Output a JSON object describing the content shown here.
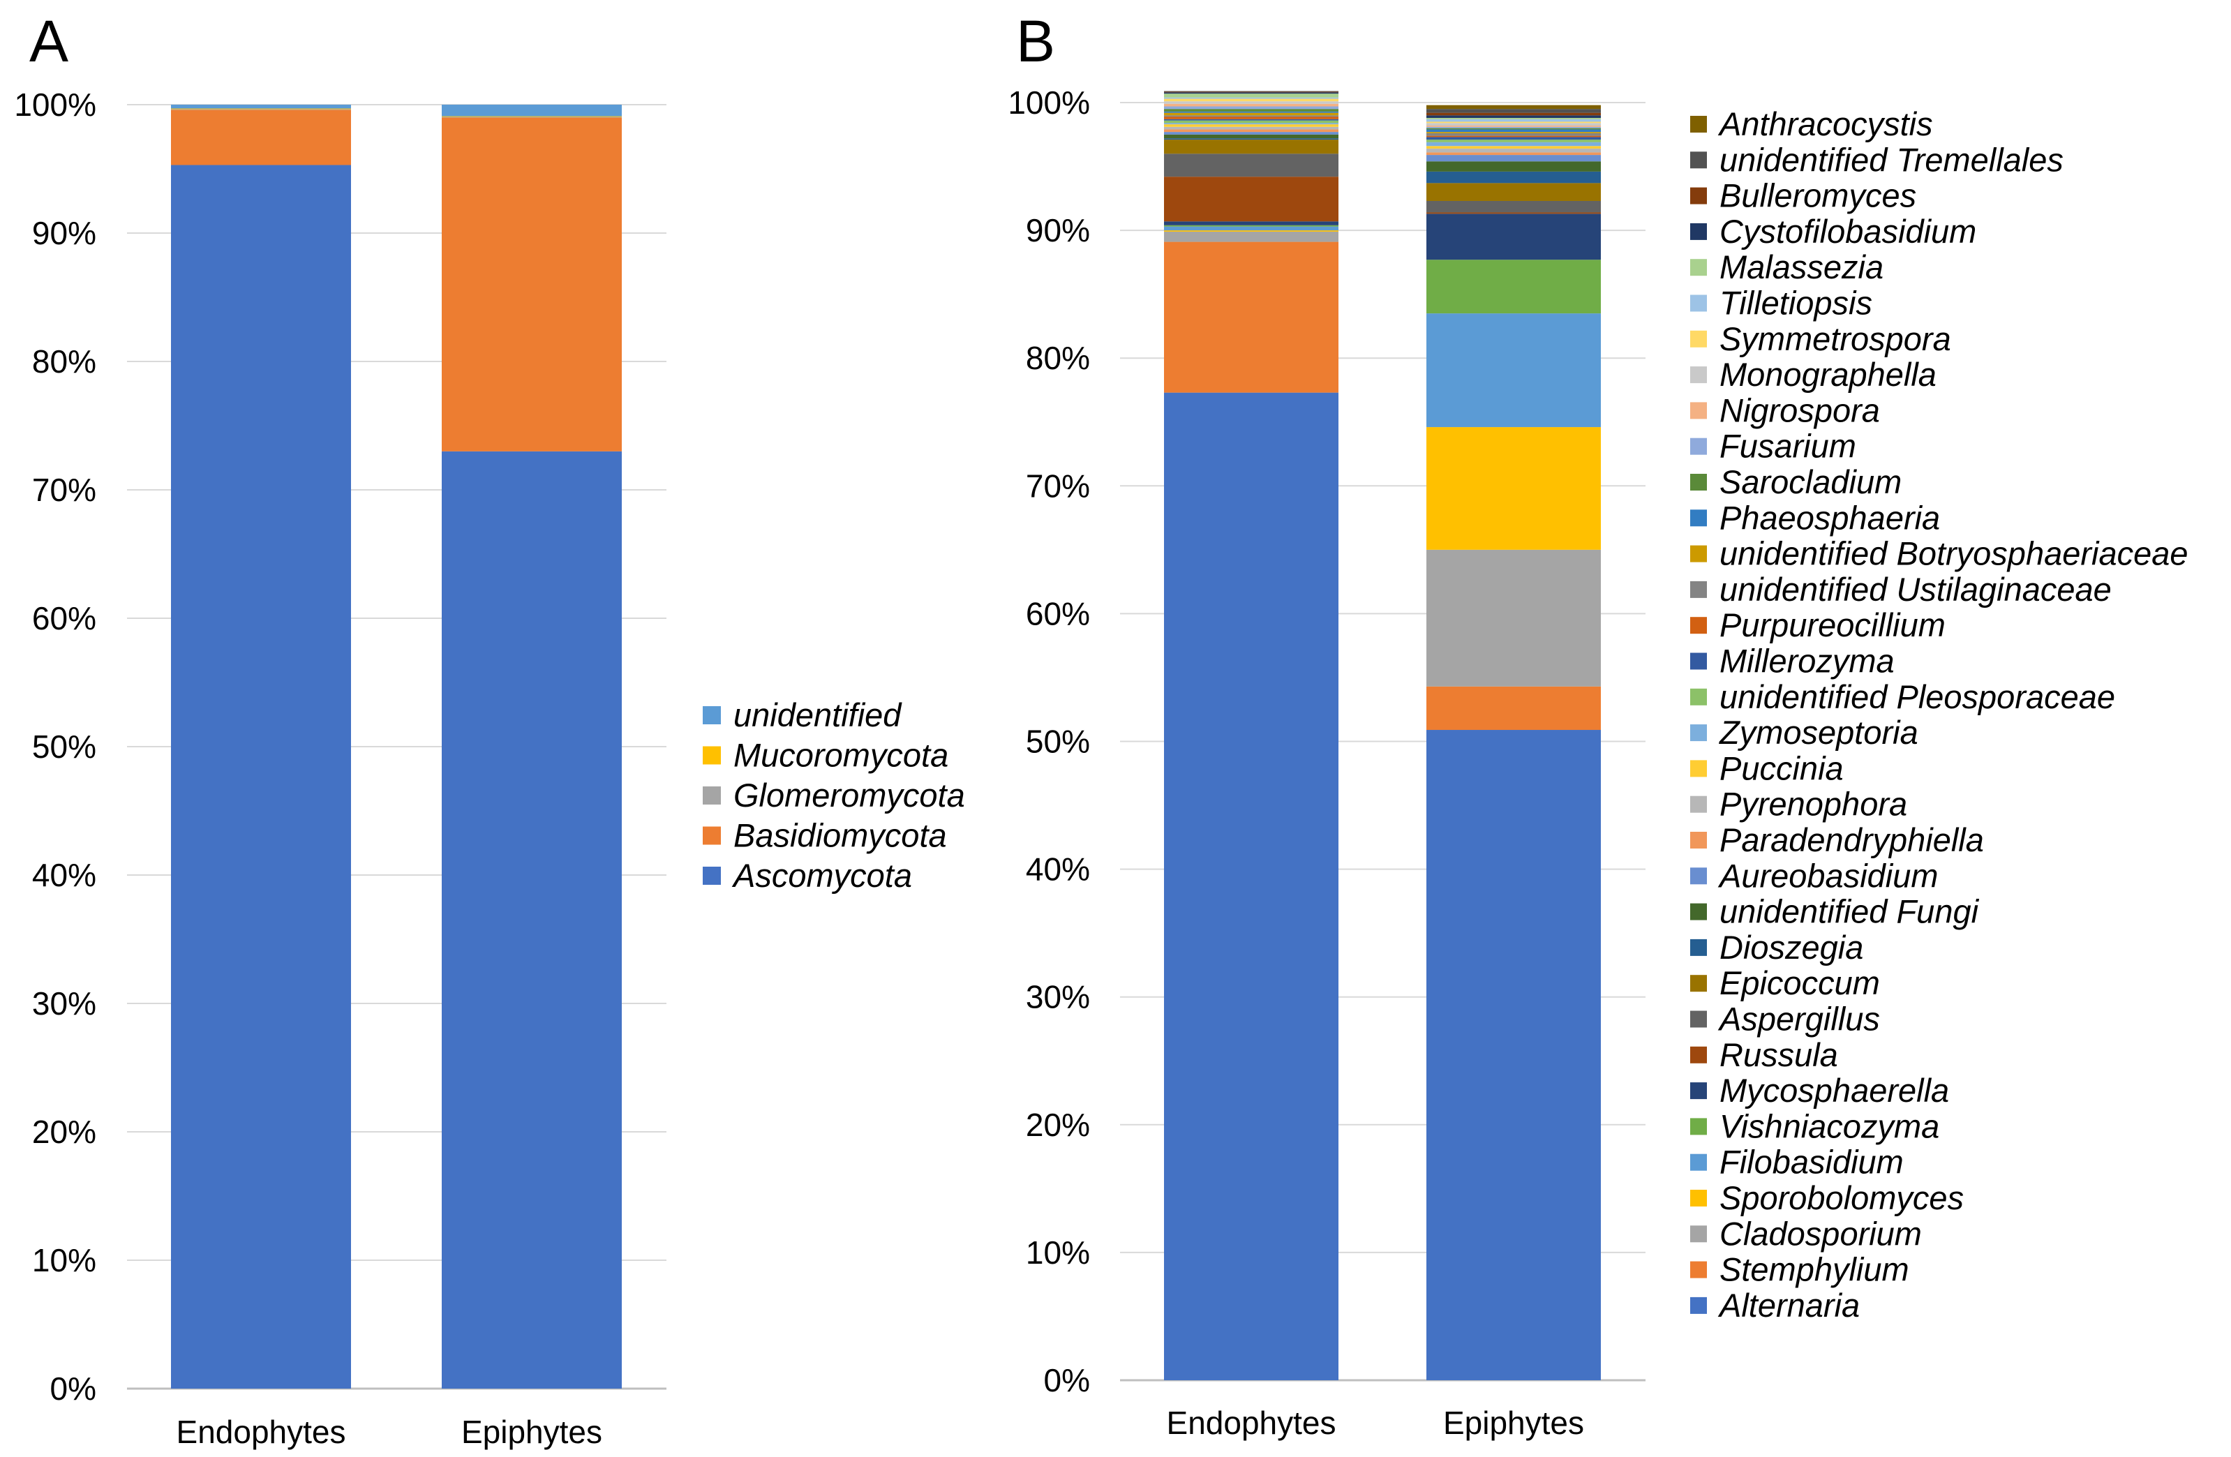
{
  "chart_data": [
    {
      "type": "bar",
      "stacked": true,
      "panel_label": "A",
      "categories": [
        "Endophytes",
        "Epiphytes"
      ],
      "ylim": [
        0,
        100
      ],
      "yticks": [
        "0%",
        "10%",
        "20%",
        "30%",
        "40%",
        "50%",
        "60%",
        "70%",
        "80%",
        "90%",
        "100%"
      ],
      "series": [
        {
          "name": "Ascomycota",
          "color": "#4472C4",
          "values": [
            95.3,
            73.0
          ]
        },
        {
          "name": "Basidiomycota",
          "color": "#ED7D31",
          "values": [
            4.3,
            26.0
          ]
        },
        {
          "name": "Glomeromycota",
          "color": "#A5A5A5",
          "values": [
            0.05,
            0.05
          ]
        },
        {
          "name": "Mucoromycota",
          "color": "#FFC000",
          "values": [
            0.05,
            0.05
          ]
        },
        {
          "name": "unidentified",
          "color": "#5B9BD5",
          "values": [
            0.3,
            0.9
          ]
        }
      ],
      "legend_order": [
        "unidentified",
        "Mucoromycota",
        "Glomeromycota",
        "Basidiomycota",
        "Ascomycota"
      ]
    },
    {
      "type": "bar",
      "stacked": true,
      "panel_label": "B",
      "categories": [
        "Endophytes",
        "Epiphytes"
      ],
      "ylim": [
        0,
        100
      ],
      "yticks": [
        "0%",
        "10%",
        "20%",
        "30%",
        "40%",
        "50%",
        "60%",
        "70%",
        "80%",
        "90%",
        "100%"
      ],
      "series": [
        {
          "name": "Alternaria",
          "color": "#4472C4",
          "values": [
            77.3,
            50.9
          ]
        },
        {
          "name": "Stemphylium",
          "color": "#ED7D31",
          "values": [
            11.8,
            3.4
          ]
        },
        {
          "name": "Cladosporium",
          "color": "#A5A5A5",
          "values": [
            0.8,
            10.7
          ]
        },
        {
          "name": "Sporobolomyces",
          "color": "#FFC000",
          "values": [
            0.1,
            9.6
          ]
        },
        {
          "name": "Filobasidium",
          "color": "#5B9BD5",
          "values": [
            0.3,
            8.9
          ]
        },
        {
          "name": "Vishniacozyma",
          "color": "#70AD47",
          "values": [
            0.1,
            4.2
          ]
        },
        {
          "name": "Mycosphaerella",
          "color": "#264478",
          "values": [
            0.3,
            3.6
          ]
        },
        {
          "name": "Russula",
          "color": "#9E480E",
          "values": [
            3.5,
            0.1
          ]
        },
        {
          "name": "Aspergillus",
          "color": "#636363",
          "values": [
            1.8,
            0.9
          ]
        },
        {
          "name": "Epicoccum",
          "color": "#997300",
          "values": [
            1.1,
            1.4
          ]
        },
        {
          "name": "Dioszegia",
          "color": "#255E91",
          "values": [
            0.1,
            0.9
          ]
        },
        {
          "name": "unidentified Fungi",
          "color": "#43682B",
          "values": [
            0.3,
            0.8
          ]
        },
        {
          "name": "Aureobasidium",
          "color": "#698ED0",
          "values": [
            0.2,
            0.5
          ]
        },
        {
          "name": "Paradendryphiella",
          "color": "#F1975A",
          "values": [
            0.2,
            0.2
          ]
        },
        {
          "name": "Pyrenophora",
          "color": "#B7B7B7",
          "values": [
            0.2,
            0.3
          ]
        },
        {
          "name": "Puccinia",
          "color": "#FFCD33",
          "values": [
            0.2,
            0.2
          ]
        },
        {
          "name": "Zymoseptoria",
          "color": "#7CAFDD",
          "values": [
            0.1,
            0.3
          ]
        },
        {
          "name": "unidentified Pleosporaceae",
          "color": "#8CC168",
          "values": [
            0.2,
            0.2
          ]
        },
        {
          "name": "Millerozyma",
          "color": "#335AA1",
          "values": [
            0.1,
            0.2
          ]
        },
        {
          "name": "Purpureocillium",
          "color": "#D26012",
          "values": [
            0.2,
            0.1
          ]
        },
        {
          "name": "unidentified Ustilaginaceae",
          "color": "#848484",
          "values": [
            0.1,
            0.2
          ]
        },
        {
          "name": "unidentified Botryosphaeriaceae",
          "color": "#CC9A00",
          "values": [
            0.2,
            0.1
          ]
        },
        {
          "name": "Phaeosphaeria",
          "color": "#327DC2",
          "values": [
            0.1,
            0.2
          ]
        },
        {
          "name": "Sarocladium",
          "color": "#5A8A39",
          "values": [
            0.2,
            0.1
          ]
        },
        {
          "name": "Fusarium",
          "color": "#8FAADC",
          "values": [
            0.2,
            0.1
          ]
        },
        {
          "name": "Nigrospora",
          "color": "#F4B183",
          "values": [
            0.2,
            0.1
          ]
        },
        {
          "name": "Monographella",
          "color": "#C9C9C9",
          "values": [
            0.2,
            0.2
          ]
        },
        {
          "name": "Symmetrospora",
          "color": "#FFD966",
          "values": [
            0.2,
            0.1
          ]
        },
        {
          "name": "Tilletiopsis",
          "color": "#9DC3E6",
          "values": [
            0.1,
            0.2
          ]
        },
        {
          "name": "Malassezia",
          "color": "#A9D18E",
          "values": [
            0.3,
            0.1
          ]
        },
        {
          "name": "Cystofilobasidium",
          "color": "#203864",
          "values": [
            0.1,
            0.2
          ]
        },
        {
          "name": "Bulleromyces",
          "color": "#843C0C",
          "values": [
            0.05,
            0.2
          ]
        },
        {
          "name": "unidentified Tremellales",
          "color": "#525252",
          "values": [
            0.05,
            0.3
          ]
        },
        {
          "name": "Anthracocystis",
          "color": "#7F6000",
          "values": [
            0.0,
            0.3
          ]
        }
      ],
      "legend_order": [
        "Anthracocystis",
        "unidentified Tremellales",
        "Bulleromyces",
        "Cystofilobasidium",
        "Malassezia",
        "Tilletiopsis",
        "Symmetrospora",
        "Monographella",
        "Nigrospora",
        "Fusarium",
        "Sarocladium",
        "Phaeosphaeria",
        "unidentified Botryosphaeriaceae",
        "unidentified Ustilaginaceae",
        "Purpureocillium",
        "Millerozyma",
        "unidentified Pleosporaceae",
        "Zymoseptoria",
        "Puccinia",
        "Pyrenophora",
        "Paradendryphiella",
        "Aureobasidium",
        "unidentified Fungi",
        "Dioszegia",
        "Epicoccum",
        "Aspergillus",
        "Russula",
        "Mycosphaerella",
        "Vishniacozyma",
        "Filobasidium",
        "Sporobolomyces",
        "Cladosporium",
        "Stemphylium",
        "Alternaria"
      ]
    }
  ]
}
